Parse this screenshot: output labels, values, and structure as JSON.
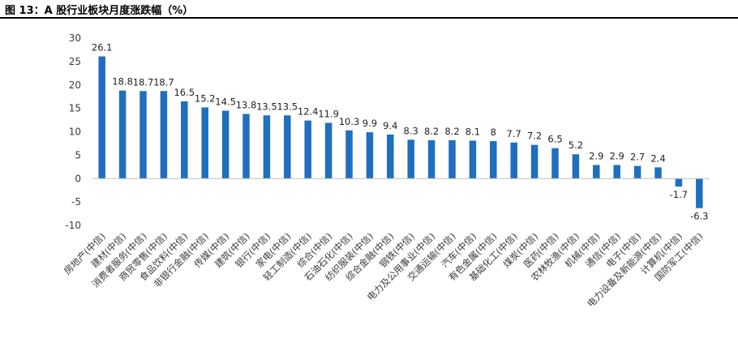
{
  "header": {
    "title": "图 13：A 股行业板块月度涨跌幅（%）"
  },
  "chart_data": {
    "type": "bar",
    "title": "图 13：A 股行业板块月度涨跌幅（%）",
    "xlabel": "",
    "ylabel": "",
    "ylim": [
      -10,
      30
    ],
    "yticks": [
      30,
      25,
      20,
      15,
      10,
      5,
      0,
      -5,
      -10
    ],
    "grid": false,
    "legend": "none",
    "bar_color": "#1f6fbf",
    "categories": [
      "房地产(中信)",
      "建材(中信)",
      "消费者服务(中信)",
      "商贸零售(中信)",
      "食品饮料(中信)",
      "非银行金融(中信)",
      "传媒(中信)",
      "建筑(中信)",
      "银行(中信)",
      "家电(中信)",
      "轻工制造(中信)",
      "综合(中信)",
      "石油石化(中信)",
      "纺织服装(中信)",
      "综合金融(中信)",
      "钢铁(中信)",
      "电力及公用事业(中信)",
      "交通运输(中信)",
      "汽车(中信)",
      "有色金属(中信)",
      "基础化工(中信)",
      "煤炭(中信)",
      "医药(中信)",
      "农林牧渔(中信)",
      "机械(中信)",
      "通信(中信)",
      "电子(中信)",
      "电力设备及新能源(中信)",
      "计算机(中信)",
      "国防军工(中信)"
    ],
    "values": [
      26.1,
      18.8,
      18.7,
      18.7,
      16.5,
      15.2,
      14.5,
      13.8,
      13.5,
      13.5,
      12.4,
      11.9,
      10.3,
      9.9,
      9.4,
      8.3,
      8.2,
      8.2,
      8.1,
      8.0,
      7.7,
      7.2,
      6.5,
      5.2,
      2.9,
      2.9,
      2.7,
      2.4,
      -1.7,
      -6.3
    ]
  }
}
